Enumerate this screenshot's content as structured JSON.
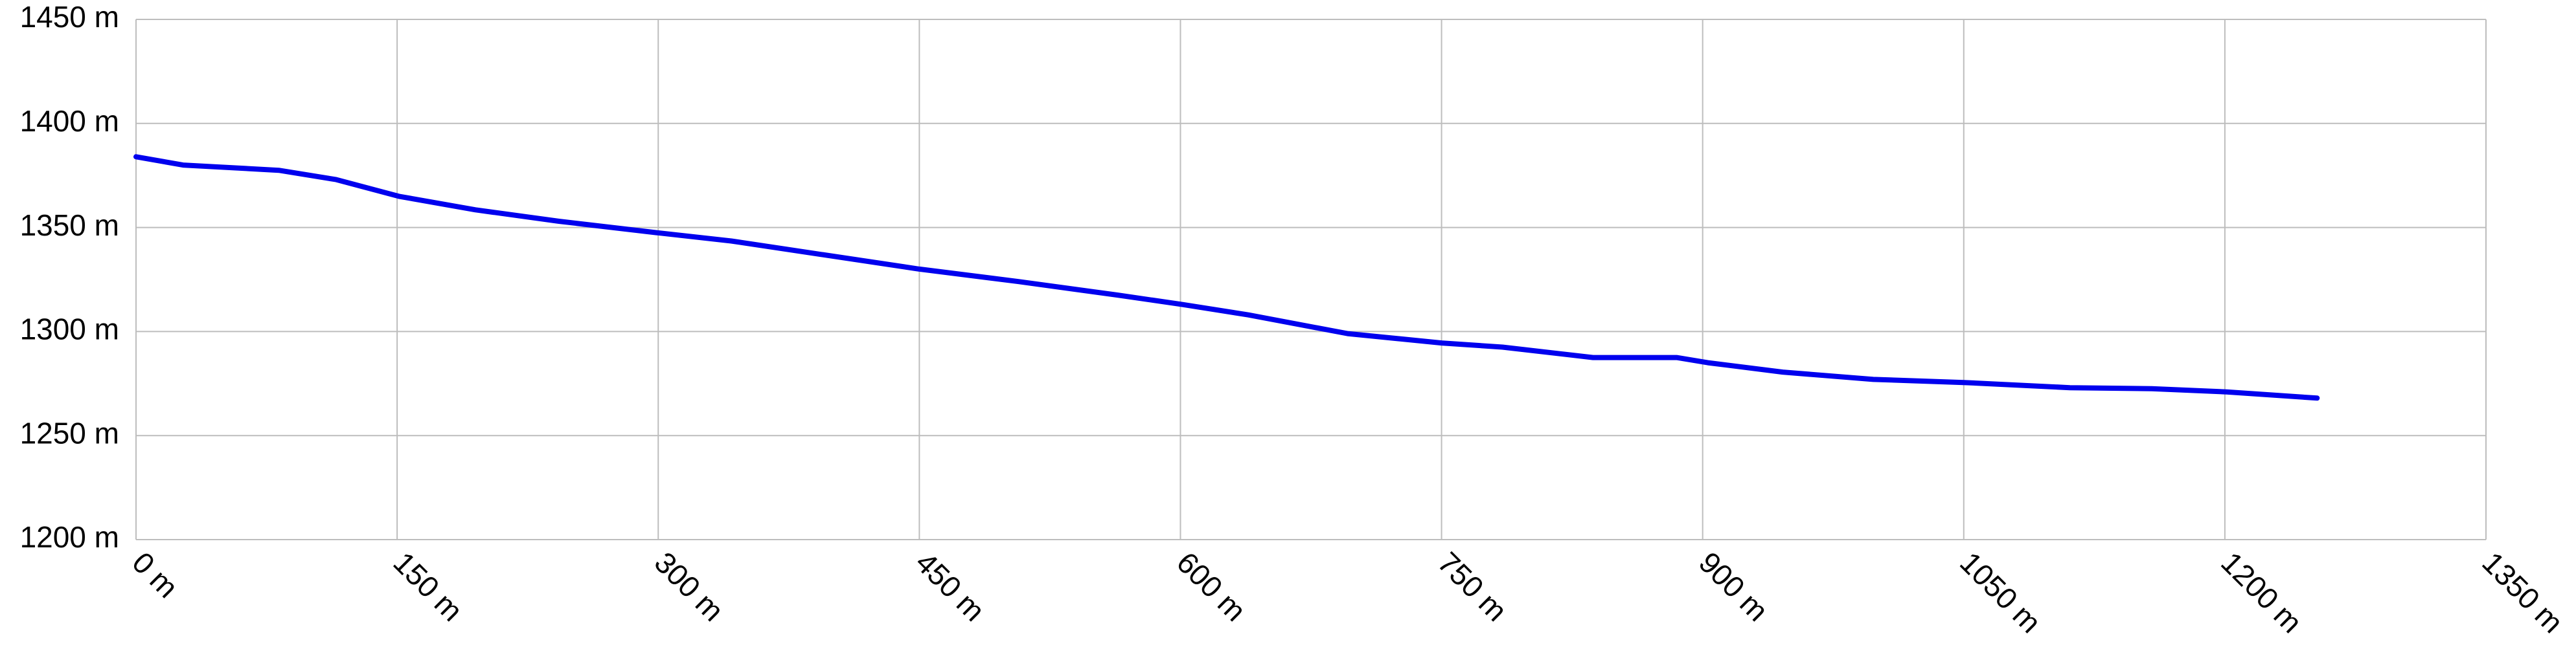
{
  "chart_data": {
    "type": "line",
    "x": [
      0,
      27,
      82,
      115,
      151,
      195,
      243,
      299,
      342,
      394,
      450,
      507,
      564,
      601,
      639,
      696,
      750,
      785,
      837,
      885,
      903,
      946,
      998,
      1050,
      1111,
      1158,
      1201,
      1253
    ],
    "values": [
      1384,
      1380,
      1377.5,
      1373,
      1365,
      1358.5,
      1353,
      1347.5,
      1343.5,
      1337,
      1330,
      1324,
      1317.5,
      1313,
      1308,
      1299,
      1294.5,
      1292.5,
      1287.5,
      1287.5,
      1285,
      1280.5,
      1277,
      1275.5,
      1273,
      1272.5,
      1271,
      1268
    ],
    "color": "#0000ee",
    "xlim": [
      0,
      1350
    ],
    "xticks": [
      {
        "value": 0,
        "label": "0 m"
      },
      {
        "value": 150,
        "label": "150 m"
      },
      {
        "value": 300,
        "label": "300 m"
      },
      {
        "value": 450,
        "label": "450 m"
      },
      {
        "value": 600,
        "label": "600 m"
      },
      {
        "value": 750,
        "label": "750 m"
      },
      {
        "value": 900,
        "label": "900 m"
      },
      {
        "value": 1050,
        "label": "1050 m"
      },
      {
        "value": 1200,
        "label": "1200 m"
      },
      {
        "value": 1350,
        "label": "1350 m"
      }
    ],
    "ylim": [
      1200,
      1450
    ],
    "yticks": [
      {
        "value": 1200,
        "label": "1200 m"
      },
      {
        "value": 1250,
        "label": "1250 m"
      },
      {
        "value": 1300,
        "label": "1300 m"
      },
      {
        "value": 1350,
        "label": "1350 m"
      },
      {
        "value": 1400,
        "label": "1400 m"
      },
      {
        "value": 1450,
        "label": "1450 m"
      }
    ],
    "grid": true
  }
}
